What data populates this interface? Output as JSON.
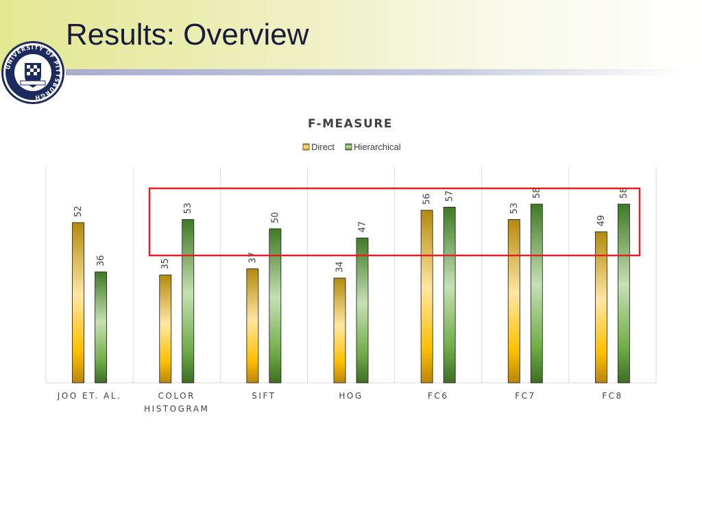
{
  "slide": {
    "title": "Results: Overview",
    "logo_text": "UNIVERSITY OF PITTSBURGH"
  },
  "colors": {
    "direct": "#f2b705",
    "hierarchical": "#6aa84f",
    "highlight_box": "#e02020",
    "header_band": "#e2e790"
  },
  "chart_data": {
    "type": "bar",
    "title": "F-MEASURE",
    "categories": [
      [
        "JOO ET. AL."
      ],
      [
        "COLOR",
        "HISTOGRAM"
      ],
      [
        "SIFT"
      ],
      [
        "HOG"
      ],
      [
        "FC6"
      ],
      [
        "FC7"
      ],
      [
        "FC8"
      ]
    ],
    "series": [
      {
        "name": "Direct",
        "values": [
          52,
          35,
          37,
          34,
          56,
          53,
          49
        ]
      },
      {
        "name": "Hierarchical",
        "values": [
          36,
          53,
          50,
          47,
          57,
          58,
          58
        ]
      }
    ],
    "ylim": [
      0,
      70
    ],
    "grid": "vertical",
    "legend": "top-center",
    "xlabel": "",
    "ylabel": ""
  }
}
